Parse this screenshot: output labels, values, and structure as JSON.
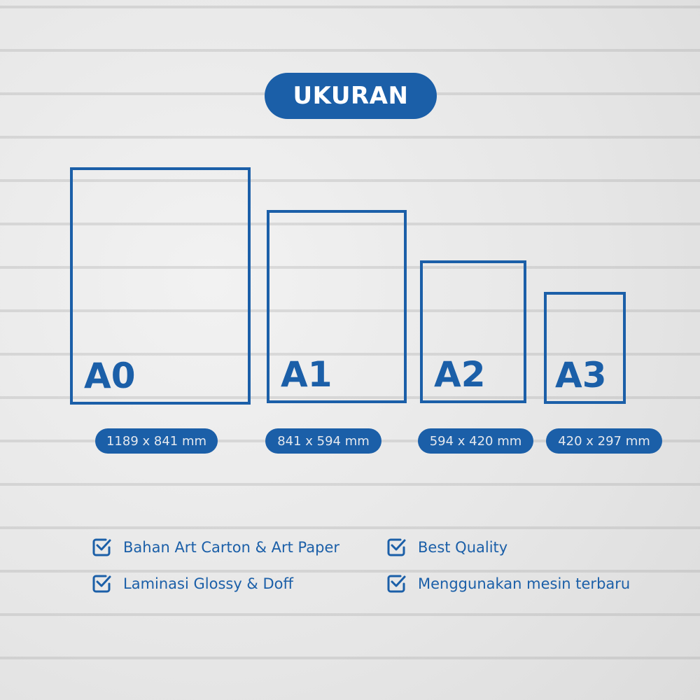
{
  "title": "UKURAN",
  "accent_color": "#1b5fa8",
  "sizes": [
    {
      "label": "A0",
      "dimensions": "1189 x 841 mm"
    },
    {
      "label": "A1",
      "dimensions": "841 x 594 mm"
    },
    {
      "label": "A2",
      "dimensions": "594 x 420 mm"
    },
    {
      "label": "A3",
      "dimensions": "420 x 297 mm"
    }
  ],
  "features": [
    {
      "icon": "checkbox-checked-icon",
      "text": "Bahan Art Carton & Art Paper"
    },
    {
      "icon": "checkbox-checked-icon",
      "text": "Best Quality"
    },
    {
      "icon": "checkbox-checked-icon",
      "text": "Laminasi Glossy & Doff"
    },
    {
      "icon": "checkbox-checked-icon",
      "text": "Menggunakan mesin terbaru"
    }
  ]
}
